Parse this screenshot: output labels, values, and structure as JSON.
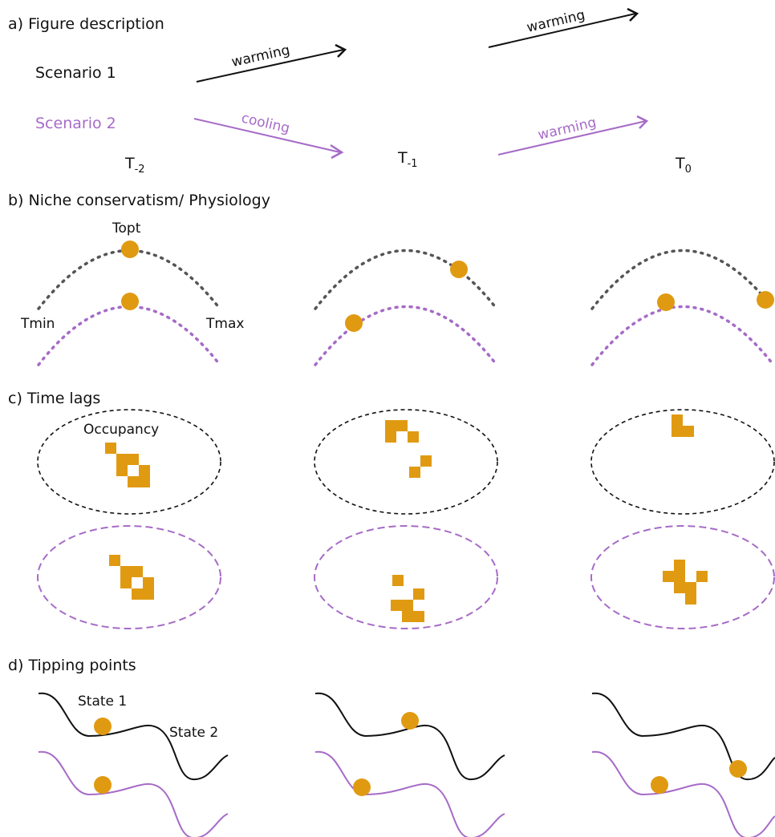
{
  "colors": {
    "scenario1": "#111111",
    "scenario2": "#a66bc7",
    "marker": "#e09a12",
    "curve_dotted_1": "#555555"
  },
  "sections": {
    "a": "a) Figure description",
    "b": "b) Niche conservatism/ Physiology",
    "c": "c) Time lags",
    "d": "d) Tipping points"
  },
  "scenarios": {
    "s1": "Scenario 1",
    "s2": "Scenario 2"
  },
  "arrows": {
    "s1_first": "warming",
    "s1_second": "warming",
    "s2_first": "cooling",
    "s2_second": "warming"
  },
  "timepoints": {
    "t_minus_2": {
      "base": "T",
      "sub": "-2"
    },
    "t_minus_1": {
      "base": "T",
      "sub": "-1"
    },
    "t_0": {
      "base": "T",
      "sub": "0"
    }
  },
  "niche_labels": {
    "topt": "Topt",
    "tmin": "Tmin",
    "tmax": "Tmax"
  },
  "time_lag_labels": {
    "occupancy": "Occupancy"
  },
  "tipping_labels": {
    "state1": "State 1",
    "state2": "State 2"
  },
  "icons": {
    "arrowhead": "chevron-right-icon",
    "marker": "filled-circle"
  }
}
